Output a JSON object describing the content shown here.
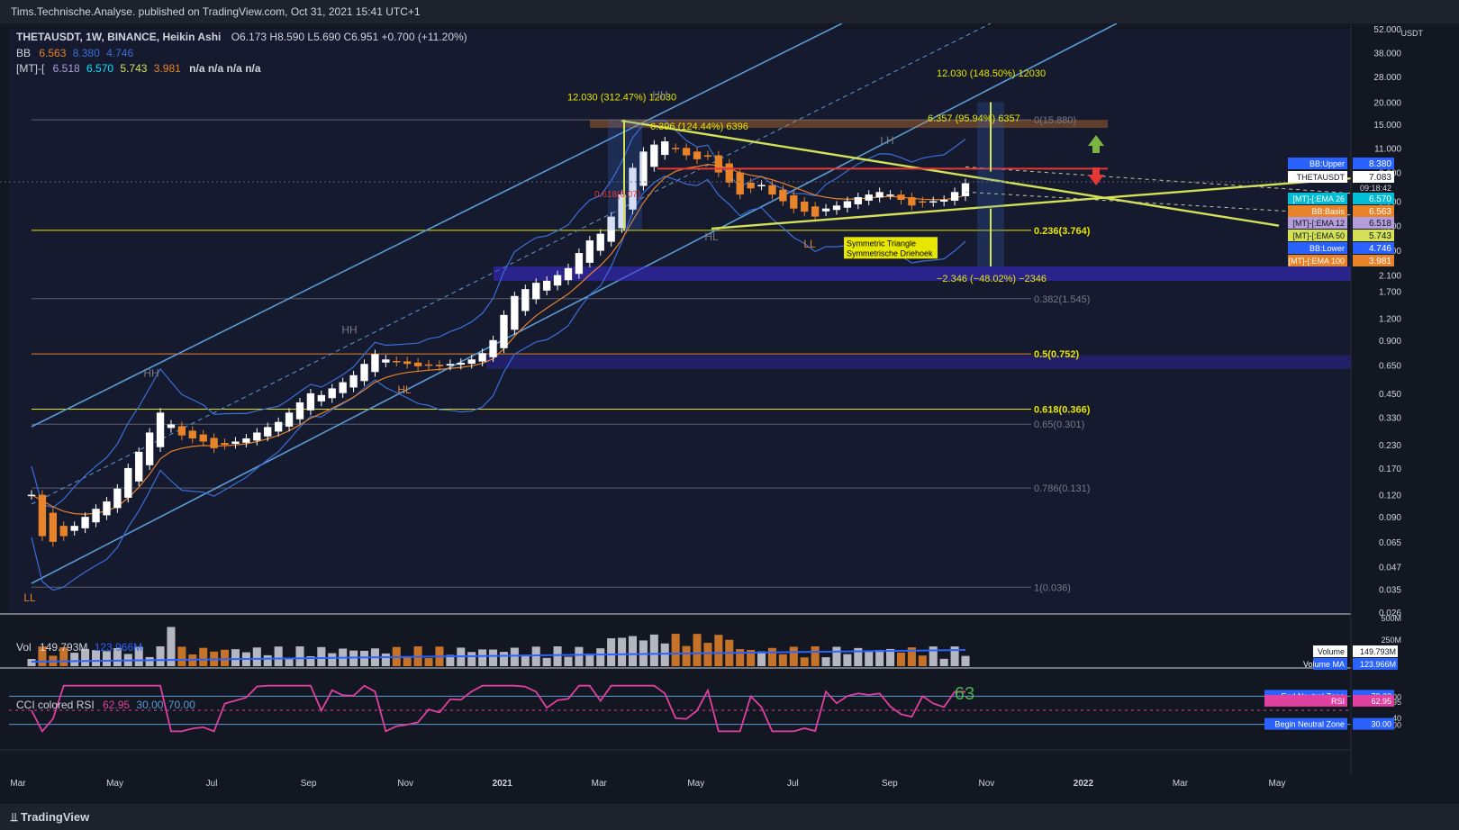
{
  "header": {
    "publish_line": "Tims.Technische.Analyse. published on TradingView.com, Oct 31, 2021 15:41 UTC+1"
  },
  "legend": {
    "symbol": "THETAUSDT, 1W, BINANCE, Heikin Ashi",
    "ohlc": "O6.173  H8.590  L5.690  C6.951  +0.700 (+11.20%)",
    "bb_label": "BB",
    "bb_values": [
      "6.563",
      "8.380",
      "4.746"
    ],
    "mt_label": "[MT]-[",
    "mt_values": [
      "6.518",
      "6.570",
      "5.743",
      "3.981"
    ],
    "mt_na": "n/a  n/a  n/a  n/a",
    "vol_label": "Vol",
    "vol_value": "149.793M",
    "vol_ma": "123.966M",
    "rsi_label": "CCI colored RSI",
    "rsi_values": [
      "62.95",
      "30.00",
      "70.00"
    ]
  },
  "colors": {
    "background": "#131722",
    "bull": "#ffffff",
    "bear": "#e8832a",
    "channel": "#5b9bd5",
    "triangle": "#d4e157",
    "fib": "#e6e600",
    "bb_upper": "#3a6fd8",
    "ema": "#e8832a",
    "resistance": "#e53935",
    "rsi": "#e040a0",
    "neutral_zone": "#5b9bd5"
  },
  "chart_data": [
    {
      "type": "candlestick",
      "title": "THETAUSDT, 1W, BINANCE, Heikin Ashi",
      "y_scale": "log",
      "ylim": [
        0.026,
        52
      ],
      "y_unit": "USDT",
      "y_ticks": [
        "52.000",
        "38.000",
        "28.000",
        "20.000",
        "15.000",
        "11.000",
        "8.000",
        "5.500",
        "4.000",
        "2.900",
        "2.100",
        "1.700",
        "1.200",
        "0.900",
        "0.650",
        "0.450",
        "0.330",
        "0.230",
        "0.170",
        "0.120",
        "0.090",
        "0.065",
        "0.047",
        "0.035",
        "0.026"
      ],
      "x_ticks": [
        "Mar",
        "May",
        "Jul",
        "Sep",
        "Nov",
        "2021",
        "Mar",
        "May",
        "Jul",
        "Sep",
        "Nov",
        "2022",
        "Mar",
        "May"
      ],
      "weekly_closes_approx": [
        0.12,
        0.07,
        0.065,
        0.07,
        0.08,
        0.09,
        0.1,
        0.11,
        0.13,
        0.17,
        0.21,
        0.27,
        0.35,
        0.3,
        0.26,
        0.25,
        0.24,
        0.22,
        0.23,
        0.24,
        0.25,
        0.27,
        0.29,
        0.31,
        0.35,
        0.4,
        0.45,
        0.44,
        0.48,
        0.52,
        0.57,
        0.66,
        0.75,
        0.7,
        0.68,
        0.66,
        0.64,
        0.65,
        0.64,
        0.66,
        0.67,
        0.7,
        0.76,
        0.9,
        1.25,
        1.6,
        1.75,
        1.9,
        1.95,
        2.1,
        2.3,
        2.8,
        3.3,
        3.6,
        4.5,
        6.0,
        8.5,
        10.5,
        11.5,
        12.0,
        11.0,
        10.0,
        9.5,
        10.0,
        8.0,
        7.0,
        6.0,
        6.5,
        6.8,
        6.0,
        5.5,
        5.0,
        4.8,
        4.5,
        5.0,
        5.2,
        5.5,
        5.8,
        6.0,
        6.2,
        6.0,
        5.6,
        5.2,
        5.4,
        5.5,
        5.6,
        6.2,
        6.951
      ],
      "current_price": "7.083",
      "countdown": "09:18:42",
      "annotations": {
        "fib_levels": [
          {
            "label": "0(15.880)",
            "value": 15.88
          },
          {
            "label": "0.236(3.764)",
            "value": 3.764
          },
          {
            "label": "0.382(1.545)",
            "value": 1.545
          },
          {
            "label": "0.5(0.752)",
            "value": 0.752
          },
          {
            "label": "0.618(0.366)",
            "value": 0.366
          },
          {
            "label": "0.65(0.301)",
            "value": 0.301
          },
          {
            "label": "0.786(0.131)",
            "value": 0.131
          },
          {
            "label": "1(0.036)",
            "value": 0.036
          },
          {
            "label": "0.618(6.07)",
            "value": 6.07
          }
        ],
        "measures": [
          "12.030 (312.47%) 12030",
          "6.396 (124.44%) 6396",
          "12.030 (148.50%) 12030",
          "6.357 (95.94%) 6357",
          "−2.346 (−48.02%) −2346"
        ],
        "swing_labels": [
          "HH",
          "HH",
          "HH",
          "HL",
          "HL",
          "LL",
          "LH",
          "LL"
        ],
        "pattern_note": [
          "Symmetric Triangle",
          "Symmetrische Driehoek"
        ]
      },
      "right_badges": [
        {
          "label": "BB:Upper",
          "value": "8.380"
        },
        {
          "label": "THETAUSDT",
          "value": "7.083"
        },
        {
          "label": "[MT]-[:EMA 26",
          "value": "6.570"
        },
        {
          "label": "BB:Basis",
          "value": "6.563"
        },
        {
          "label": "[MT]-[:EMA 12",
          "value": "6.518"
        },
        {
          "label": "[MT]-[:EMA 50",
          "value": "5.743"
        },
        {
          "label": "BB:Lower",
          "value": "4.746"
        },
        {
          "label": "[MT]-[:EMA 100",
          "value": "3.981"
        }
      ]
    },
    {
      "type": "bar",
      "title": "Vol",
      "y_ticks": [
        "500M",
        "250M"
      ],
      "badges": [
        {
          "label": "Volume",
          "value": "149.793M"
        },
        {
          "label": "Volume MA",
          "value": "123.966M"
        }
      ]
    },
    {
      "type": "line",
      "title": "CCI colored RSI",
      "ylim": [
        0,
        100
      ],
      "y_ticks": [
        "70.00",
        "62.95",
        "40",
        "30.00"
      ],
      "big_label": "63",
      "badges": [
        {
          "label": "End Neutral Zone",
          "value": "70.00"
        },
        {
          "label": "RSI",
          "value": "62.95"
        },
        {
          "label": "Begin Neutral Zone",
          "value": "30.00"
        }
      ]
    }
  ],
  "footer": {
    "brand": "TradingView"
  }
}
